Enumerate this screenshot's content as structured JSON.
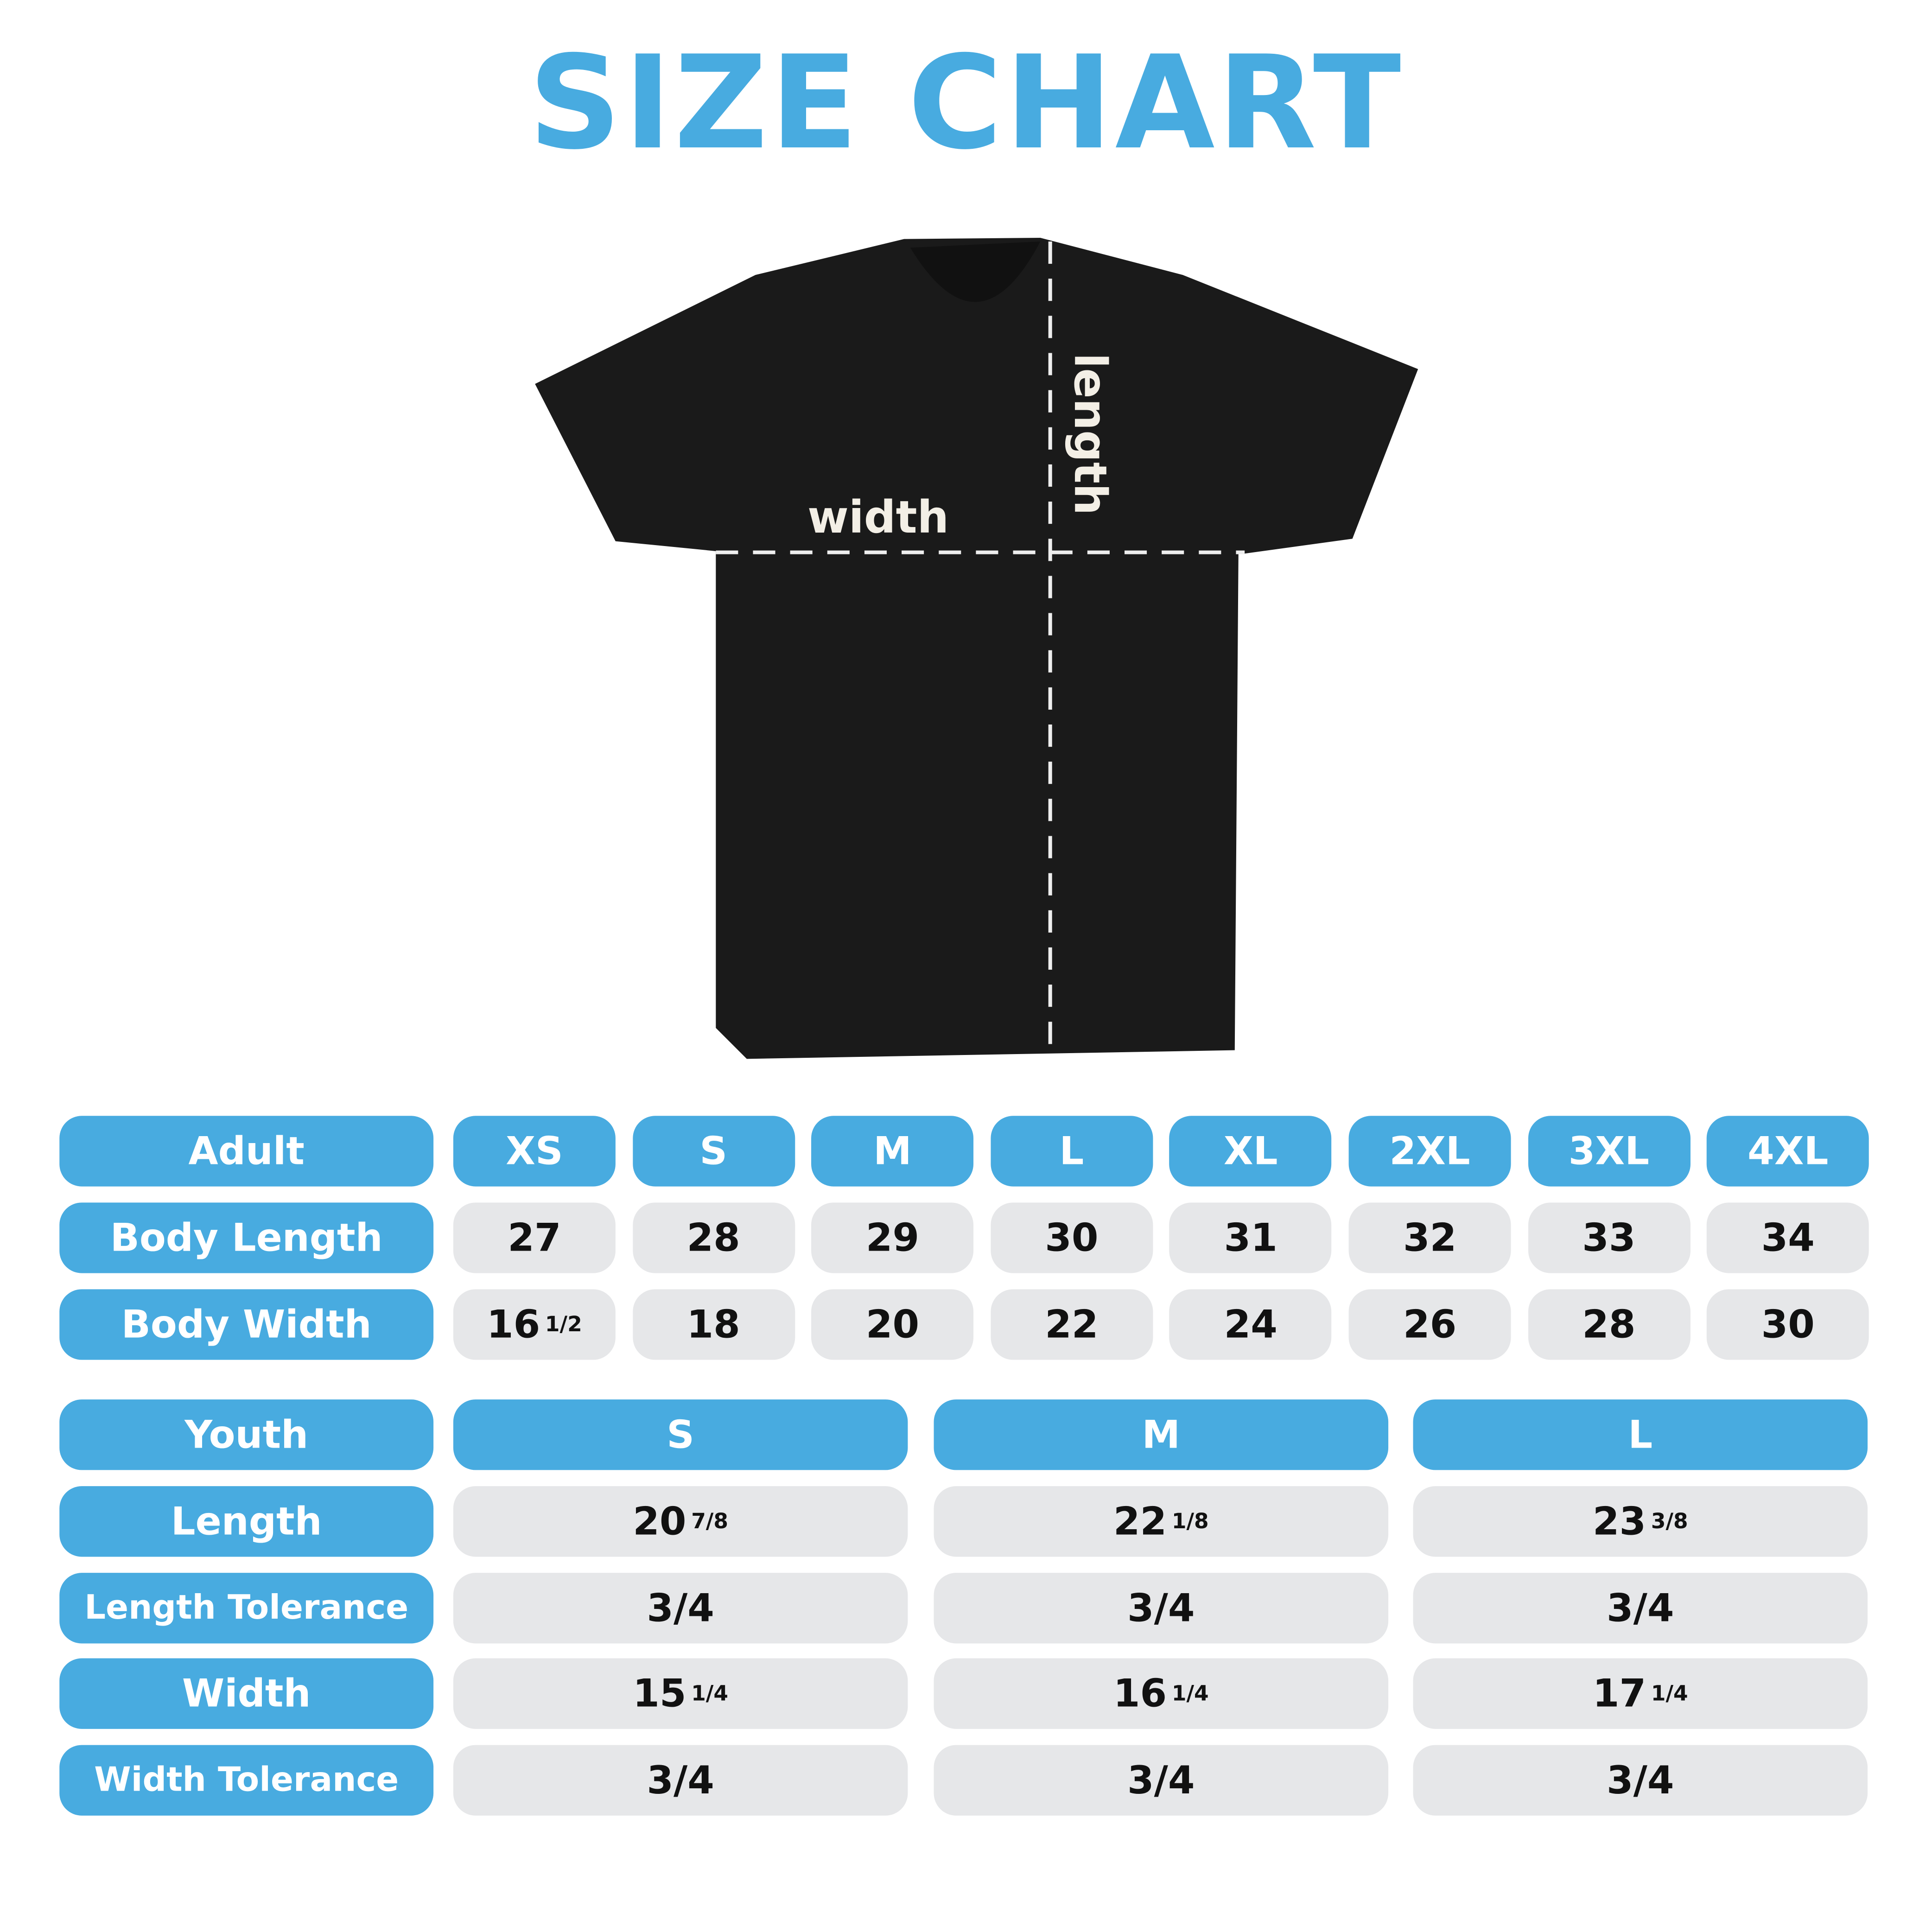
{
  "title": "SIZE CHART",
  "colors": {
    "accent": "#48ABE0",
    "cell": "#E6E7E9",
    "shirt": "#1a1a1a"
  },
  "shirt": {
    "width_label": "width",
    "length_label": "length"
  },
  "adult": {
    "header": "Adult",
    "sizes": [
      "XS",
      "S",
      "M",
      "L",
      "XL",
      "2XL",
      "3XL",
      "4XL"
    ],
    "rows": [
      {
        "label": "Body Length",
        "values": [
          {
            "w": "27"
          },
          {
            "w": "28"
          },
          {
            "w": "29"
          },
          {
            "w": "30"
          },
          {
            "w": "31"
          },
          {
            "w": "32"
          },
          {
            "w": "33"
          },
          {
            "w": "34"
          }
        ]
      },
      {
        "label": "Body Width",
        "values": [
          {
            "w": "16",
            "f": "1/2"
          },
          {
            "w": "18"
          },
          {
            "w": "20"
          },
          {
            "w": "22"
          },
          {
            "w": "24"
          },
          {
            "w": "26"
          },
          {
            "w": "28"
          },
          {
            "w": "30"
          }
        ]
      }
    ]
  },
  "youth": {
    "header": "Youth",
    "sizes": [
      "S",
      "M",
      "L"
    ],
    "rows": [
      {
        "label": "Length",
        "values": [
          {
            "w": "20",
            "f": "7/8"
          },
          {
            "w": "22",
            "f": "1/8"
          },
          {
            "w": "23",
            "f": "3/8"
          }
        ]
      },
      {
        "label": "Length Tolerance",
        "values": [
          {
            "w": "3/4"
          },
          {
            "w": "3/4"
          },
          {
            "w": "3/4"
          }
        ]
      },
      {
        "label": "Width",
        "values": [
          {
            "w": "15",
            "f": "1/4"
          },
          {
            "w": "16",
            "f": "1/4"
          },
          {
            "w": "17",
            "f": "1/4"
          }
        ]
      },
      {
        "label": "Width Tolerance",
        "values": [
          {
            "w": "3/4"
          },
          {
            "w": "3/4"
          },
          {
            "w": "3/4"
          }
        ]
      }
    ]
  }
}
